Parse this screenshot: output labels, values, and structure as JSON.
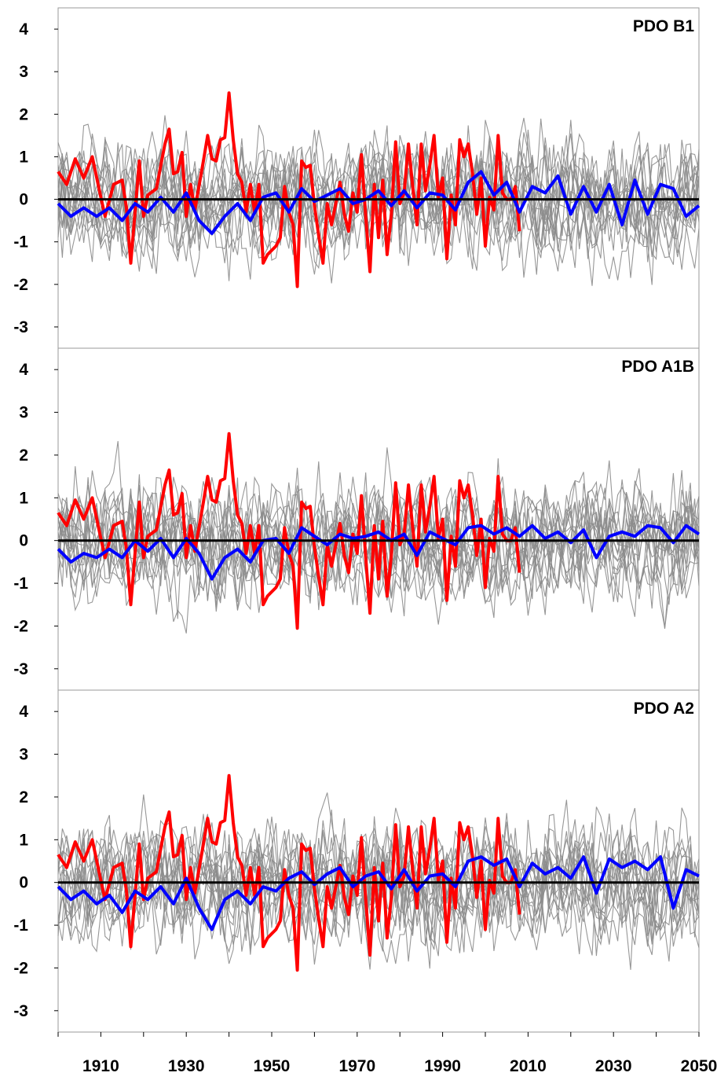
{
  "chart_data": [
    {
      "type": "line",
      "title": "PDO B1",
      "xlim": [
        1900,
        2050
      ],
      "ylim": [
        -3.5,
        4.5
      ],
      "yticks": [
        -3,
        -2,
        -1,
        0,
        1,
        2,
        3,
        4
      ],
      "grid": false,
      "series": [
        {
          "color": "#ff0000",
          "x": [
            1900,
            1902,
            1904,
            1906,
            1908,
            1910,
            1911,
            1913,
            1915,
            1916,
            1917,
            1919,
            1920,
            1921,
            1923,
            1925,
            1926,
            1927,
            1928,
            1929,
            1930,
            1931,
            1932,
            1934,
            1935,
            1936,
            1937,
            1938,
            1939,
            1940,
            1941,
            1942,
            1943,
            1944,
            1945,
            1946,
            1947,
            1948,
            1949,
            1950,
            1951,
            1952,
            1953,
            1954,
            1955,
            1956,
            1957,
            1958,
            1959,
            1960,
            1961,
            1962,
            1963,
            1964,
            1965,
            1966,
            1967,
            1968,
            1969,
            1970,
            1971,
            1972,
            1973,
            1974,
            1975,
            1976,
            1977,
            1978,
            1979,
            1980,
            1981,
            1982,
            1983,
            1984,
            1985,
            1986,
            1987,
            1988,
            1989,
            1990,
            1991,
            1992,
            1993,
            1994,
            1995,
            1996,
            1997,
            1998,
            1999,
            2000,
            2001,
            2002,
            2003,
            2004,
            2005,
            2006,
            2007,
            2008
          ],
          "y": [
            0.65,
            0.35,
            0.95,
            0.5,
            1.0,
            0.05,
            -0.4,
            0.35,
            0.45,
            -0.2,
            -1.5,
            0.9,
            -0.4,
            0.1,
            0.25,
            1.3,
            1.65,
            0.6,
            0.65,
            1.1,
            -0.4,
            0.35,
            -0.25,
            0.9,
            1.5,
            0.95,
            0.9,
            1.4,
            1.45,
            2.5,
            1.4,
            0.6,
            0.4,
            -0.3,
            0.35,
            -0.3,
            0.35,
            -1.5,
            -1.3,
            -1.2,
            -1.1,
            -0.9,
            0.3,
            -0.3,
            -0.6,
            -2.05,
            0.9,
            0.75,
            0.8,
            -0.15,
            -0.85,
            -1.5,
            -0.1,
            -0.6,
            -0.1,
            0.4,
            -0.35,
            -0.75,
            0.15,
            -0.3,
            1.05,
            -0.4,
            -1.7,
            0.35,
            -0.9,
            0.45,
            -1.3,
            -0.35,
            1.35,
            -0.1,
            0.15,
            1.3,
            0.3,
            -0.6,
            1.3,
            0.2,
            0.8,
            1.5,
            0.05,
            0.5,
            -1.4,
            0.1,
            -0.6,
            1.4,
            1.0,
            1.3,
            0.6,
            -0.35,
            0.5,
            -1.1,
            0.05,
            -0.25,
            1.5,
            0.15,
            0.0,
            0.0,
            0.3,
            -0.75
          ]
        },
        {
          "color": "#0000ff",
          "x": [
            1900,
            1903,
            1906,
            1909,
            1912,
            1915,
            1918,
            1921,
            1924,
            1927,
            1930,
            1933,
            1936,
            1939,
            1942,
            1945,
            1948,
            1951,
            1954,
            1957,
            1960,
            1963,
            1966,
            1969,
            1972,
            1975,
            1978,
            1981,
            1984,
            1987,
            1990,
            1993,
            1996,
            1999,
            2002,
            2005,
            2008,
            2011,
            2014,
            2017,
            2020,
            2023,
            2026,
            2029,
            2032,
            2035,
            2038,
            2041,
            2044,
            2047,
            2050
          ],
          "y": [
            -0.1,
            -0.4,
            -0.2,
            -0.4,
            -0.2,
            -0.5,
            -0.1,
            -0.3,
            0.05,
            -0.3,
            0.15,
            -0.5,
            -0.8,
            -0.4,
            -0.1,
            -0.5,
            0.05,
            0.15,
            -0.3,
            0.25,
            -0.05,
            0.1,
            0.25,
            -0.1,
            0.0,
            0.2,
            -0.15,
            0.2,
            -0.2,
            0.15,
            0.1,
            -0.25,
            0.4,
            0.65,
            0.1,
            0.4,
            -0.3,
            0.3,
            0.15,
            0.55,
            -0.35,
            0.3,
            -0.3,
            0.35,
            -0.6,
            0.45,
            -0.35,
            0.35,
            0.25,
            -0.4,
            -0.15
          ]
        }
      ]
    },
    {
      "type": "line",
      "title": "PDO A1B",
      "xlim": [
        1900,
        2050
      ],
      "ylim": [
        -3.5,
        4.5
      ],
      "yticks": [
        -3,
        -2,
        -1,
        0,
        1,
        2,
        3,
        4
      ],
      "grid": false,
      "series": [
        {
          "color": "#ff0000",
          "x": [
            1900,
            1902,
            1904,
            1906,
            1908,
            1910,
            1911,
            1913,
            1915,
            1916,
            1917,
            1919,
            1920,
            1921,
            1923,
            1925,
            1926,
            1927,
            1928,
            1929,
            1930,
            1931,
            1932,
            1934,
            1935,
            1936,
            1937,
            1938,
            1939,
            1940,
            1941,
            1942,
            1943,
            1944,
            1945,
            1946,
            1947,
            1948,
            1949,
            1950,
            1951,
            1952,
            1953,
            1954,
            1955,
            1956,
            1957,
            1958,
            1959,
            1960,
            1961,
            1962,
            1963,
            1964,
            1965,
            1966,
            1967,
            1968,
            1969,
            1970,
            1971,
            1972,
            1973,
            1974,
            1975,
            1976,
            1977,
            1978,
            1979,
            1980,
            1981,
            1982,
            1983,
            1984,
            1985,
            1986,
            1987,
            1988,
            1989,
            1990,
            1991,
            1992,
            1993,
            1994,
            1995,
            1996,
            1997,
            1998,
            1999,
            2000,
            2001,
            2002,
            2003,
            2004,
            2005,
            2006,
            2007,
            2008
          ],
          "y": [
            0.65,
            0.35,
            0.95,
            0.5,
            1.0,
            0.05,
            -0.4,
            0.35,
            0.45,
            -0.2,
            -1.5,
            0.9,
            -0.4,
            0.1,
            0.25,
            1.3,
            1.65,
            0.6,
            0.65,
            1.1,
            -0.4,
            0.35,
            -0.25,
            0.9,
            1.5,
            0.95,
            0.9,
            1.4,
            1.45,
            2.5,
            1.4,
            0.6,
            0.4,
            -0.3,
            0.35,
            -0.3,
            0.35,
            -1.5,
            -1.3,
            -1.2,
            -1.1,
            -0.9,
            0.3,
            -0.3,
            -0.6,
            -2.05,
            0.9,
            0.75,
            0.8,
            -0.15,
            -0.85,
            -1.5,
            -0.1,
            -0.6,
            -0.1,
            0.4,
            -0.35,
            -0.75,
            0.15,
            -0.3,
            1.05,
            -0.4,
            -1.7,
            0.35,
            -0.9,
            0.45,
            -1.3,
            -0.35,
            1.35,
            -0.1,
            0.15,
            1.3,
            0.3,
            -0.6,
            1.3,
            0.2,
            0.8,
            1.5,
            0.05,
            0.5,
            -1.4,
            0.1,
            -0.6,
            1.4,
            1.0,
            1.3,
            0.6,
            -0.35,
            0.5,
            -1.1,
            0.05,
            -0.25,
            1.5,
            0.15,
            0.0,
            0.0,
            0.3,
            -0.75
          ]
        },
        {
          "color": "#0000ff",
          "x": [
            1900,
            1903,
            1906,
            1909,
            1912,
            1915,
            1918,
            1921,
            1924,
            1927,
            1930,
            1933,
            1936,
            1939,
            1942,
            1945,
            1948,
            1951,
            1954,
            1957,
            1960,
            1963,
            1966,
            1969,
            1972,
            1975,
            1978,
            1981,
            1984,
            1987,
            1990,
            1993,
            1996,
            1999,
            2002,
            2005,
            2008,
            2011,
            2014,
            2017,
            2020,
            2023,
            2026,
            2029,
            2032,
            2035,
            2038,
            2041,
            2044,
            2047,
            2050
          ],
          "y": [
            -0.2,
            -0.5,
            -0.3,
            -0.4,
            -0.2,
            -0.4,
            0.0,
            -0.25,
            0.05,
            -0.4,
            0.05,
            -0.3,
            -0.9,
            -0.4,
            -0.2,
            -0.5,
            0.0,
            0.05,
            -0.3,
            0.3,
            0.1,
            -0.1,
            0.15,
            0.05,
            0.1,
            0.2,
            0.0,
            0.15,
            -0.35,
            0.2,
            0.05,
            -0.1,
            0.3,
            0.35,
            0.15,
            0.3,
            0.1,
            0.35,
            0.05,
            0.2,
            -0.05,
            0.25,
            -0.4,
            0.1,
            0.2,
            0.1,
            0.35,
            0.3,
            -0.05,
            0.35,
            0.15
          ]
        }
      ]
    },
    {
      "type": "line",
      "title": "PDO A2",
      "xlim": [
        1900,
        2050
      ],
      "ylim": [
        -3.5,
        4.5
      ],
      "yticks": [
        -3,
        -2,
        -1,
        0,
        1,
        2,
        3,
        4
      ],
      "xticks": [
        1910,
        1930,
        1950,
        1970,
        1990,
        2010,
        2030,
        2050
      ],
      "grid": false,
      "series": [
        {
          "color": "#ff0000",
          "x": [
            1900,
            1902,
            1904,
            1906,
            1908,
            1910,
            1911,
            1913,
            1915,
            1916,
            1917,
            1919,
            1920,
            1921,
            1923,
            1925,
            1926,
            1927,
            1928,
            1929,
            1930,
            1931,
            1932,
            1934,
            1935,
            1936,
            1937,
            1938,
            1939,
            1940,
            1941,
            1942,
            1943,
            1944,
            1945,
            1946,
            1947,
            1948,
            1949,
            1950,
            1951,
            1952,
            1953,
            1954,
            1955,
            1956,
            1957,
            1958,
            1959,
            1960,
            1961,
            1962,
            1963,
            1964,
            1965,
            1966,
            1967,
            1968,
            1969,
            1970,
            1971,
            1972,
            1973,
            1974,
            1975,
            1976,
            1977,
            1978,
            1979,
            1980,
            1981,
            1982,
            1983,
            1984,
            1985,
            1986,
            1987,
            1988,
            1989,
            1990,
            1991,
            1992,
            1993,
            1994,
            1995,
            1996,
            1997,
            1998,
            1999,
            2000,
            2001,
            2002,
            2003,
            2004,
            2005,
            2006,
            2007,
            2008
          ],
          "y": [
            0.65,
            0.35,
            0.95,
            0.5,
            1.0,
            0.05,
            -0.4,
            0.35,
            0.45,
            -0.2,
            -1.5,
            0.9,
            -0.4,
            0.1,
            0.25,
            1.3,
            1.65,
            0.6,
            0.65,
            1.1,
            -0.4,
            0.35,
            -0.25,
            0.9,
            1.5,
            0.95,
            0.9,
            1.4,
            1.45,
            2.5,
            1.4,
            0.6,
            0.4,
            -0.3,
            0.35,
            -0.3,
            0.35,
            -1.5,
            -1.3,
            -1.2,
            -1.1,
            -0.9,
            0.3,
            -0.3,
            -0.6,
            -2.05,
            0.9,
            0.75,
            0.8,
            -0.15,
            -0.85,
            -1.5,
            -0.1,
            -0.6,
            -0.1,
            0.4,
            -0.35,
            -0.75,
            0.15,
            -0.3,
            1.05,
            -0.4,
            -1.7,
            0.35,
            -0.9,
            0.45,
            -1.3,
            -0.35,
            1.35,
            -0.1,
            0.15,
            1.3,
            0.3,
            -0.6,
            1.3,
            0.2,
            0.8,
            1.5,
            0.05,
            0.5,
            -1.4,
            0.1,
            -0.6,
            1.4,
            1.0,
            1.3,
            0.6,
            -0.35,
            0.5,
            -1.1,
            0.05,
            -0.25,
            1.5,
            0.15,
            0.0,
            0.0,
            0.3,
            -0.75
          ]
        },
        {
          "color": "#0000ff",
          "x": [
            1900,
            1903,
            1906,
            1909,
            1912,
            1915,
            1918,
            1921,
            1924,
            1927,
            1930,
            1933,
            1936,
            1939,
            1942,
            1945,
            1948,
            1951,
            1954,
            1957,
            1960,
            1963,
            1966,
            1969,
            1972,
            1975,
            1978,
            1981,
            1984,
            1987,
            1990,
            1993,
            1996,
            1999,
            2002,
            2005,
            2008,
            2011,
            2014,
            2017,
            2020,
            2023,
            2026,
            2029,
            2032,
            2035,
            2038,
            2041,
            2044,
            2047,
            2050
          ],
          "y": [
            -0.1,
            -0.4,
            -0.2,
            -0.5,
            -0.3,
            -0.7,
            -0.2,
            -0.4,
            -0.1,
            -0.5,
            0.1,
            -0.6,
            -1.1,
            -0.4,
            -0.2,
            -0.5,
            -0.1,
            -0.2,
            0.1,
            0.25,
            -0.05,
            0.2,
            0.35,
            -0.1,
            0.15,
            0.25,
            -0.15,
            0.3,
            -0.2,
            0.15,
            0.2,
            -0.1,
            0.5,
            0.6,
            0.4,
            0.55,
            -0.1,
            0.45,
            0.2,
            0.35,
            0.1,
            0.6,
            -0.25,
            0.55,
            0.35,
            0.5,
            0.3,
            0.6,
            -0.6,
            0.3,
            0.15
          ]
        }
      ]
    }
  ]
}
